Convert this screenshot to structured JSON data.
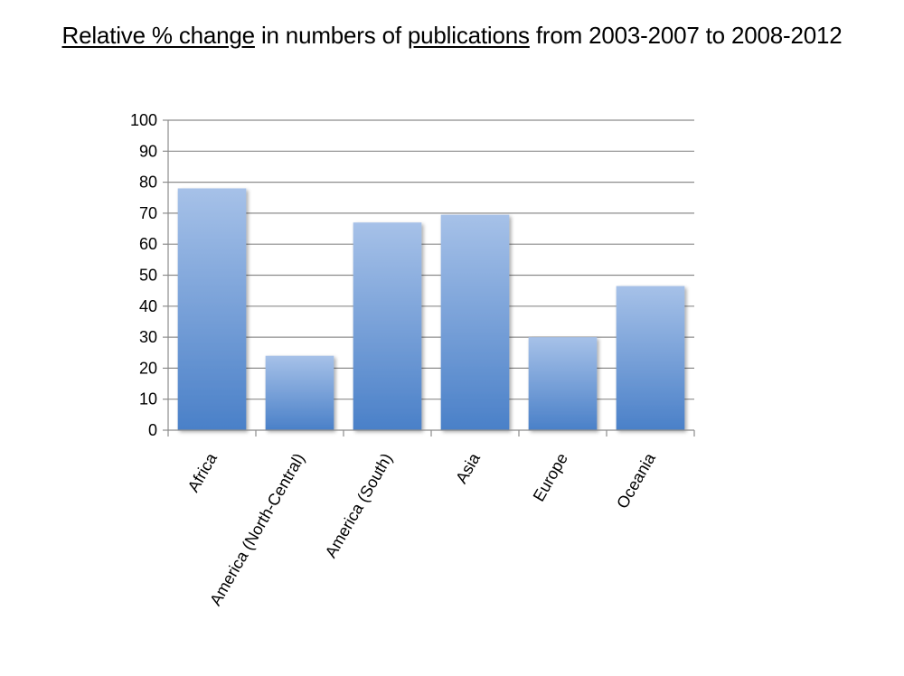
{
  "title": {
    "part1": "Relative % change",
    "part2": " in numbers of ",
    "part3": "publications",
    "part4": " from 2003-2007 to 2008-2012"
  },
  "colors": {
    "bar_top": "#a6c1e8",
    "bar_bottom": "#4a80c8",
    "gridline": "#8c8c8c",
    "axis": "#8c8c8c"
  },
  "chart_data": {
    "type": "bar",
    "title": "Relative % change in numbers of publications from 2003-2007 to 2008-2012",
    "categories": [
      "Africa",
      "America (North-Central)",
      "America (South)",
      "Asia",
      "Europe",
      "Oceania"
    ],
    "values": [
      78,
      24,
      67,
      69.5,
      30,
      46.5
    ],
    "xlabel": "",
    "ylabel": "",
    "ylim": [
      0,
      100
    ],
    "yticks": [
      "0",
      "10",
      "20",
      "30",
      "40",
      "50",
      "60",
      "70",
      "80",
      "90",
      "100"
    ],
    "grid": true,
    "legend": "none"
  }
}
